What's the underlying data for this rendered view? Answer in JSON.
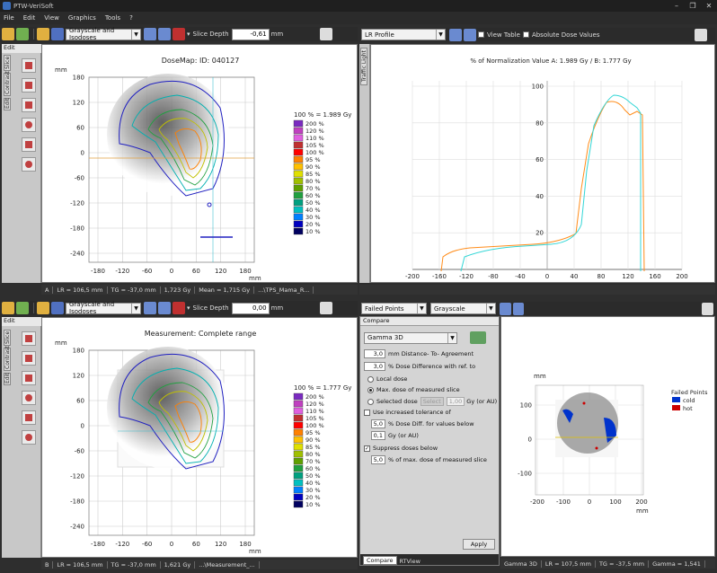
{
  "app": {
    "title": "PTW-VeriSoft",
    "menu": [
      "File",
      "Edit",
      "View",
      "Graphics",
      "Tools",
      "?"
    ],
    "window_buttons": [
      "–",
      "❐",
      "✕"
    ]
  },
  "top_left": {
    "combo": "Grayscale and Isodoses",
    "slice_label": "Slice Depth",
    "slice_value": "-0,61",
    "slice_unit": "mm",
    "edit_tab": "Edit",
    "vtabs": [
      "Slice",
      "Contrast",
      "Edit"
    ],
    "plot": {
      "title": "DoseMap: ID: 040127",
      "y_unit": "mm",
      "x_unit": "mm",
      "yticks": [
        "180",
        "120",
        "60",
        "0",
        "-60",
        "-120",
        "-180",
        "-240"
      ],
      "xticks": [
        "-180",
        "-120",
        "-60",
        "0",
        "60",
        "120",
        "180"
      ]
    },
    "legend": {
      "header": "100 % = 1.989 Gy",
      "items": [
        "200 %",
        "120 %",
        "110 %",
        "105 %",
        "100 %",
        "95 %",
        "90 %",
        "85 %",
        "80 %",
        "70 %",
        "60 %",
        "50 %",
        "40 %",
        "30 %",
        "20 %",
        "10 %"
      ]
    },
    "status": [
      "A",
      "LR = 106,5 mm",
      "TG = -37,0 mm",
      "1,723 Gy",
      "Mean = 1,715 Gy",
      "...\\TPS_Mama_R..."
    ]
  },
  "top_right": {
    "combo": "LR Profile",
    "view_table": "View Table",
    "absolute": "Absolute Dose Values",
    "vtab": "Traffic Light",
    "plot": {
      "title": "% of Normalization Value A: 1.989 Gy  / B: 1.777 Gy",
      "x_unit": "mm",
      "yticks": [
        "100",
        "80",
        "60",
        "40",
        "20"
      ],
      "xticks": [
        "-200",
        "-160",
        "-120",
        "-80",
        "-40",
        "0",
        "40",
        "80",
        "120",
        "160",
        "200"
      ]
    }
  },
  "bottom_left": {
    "combo": "Grayscale and Isodoses",
    "slice_label": "Slice Depth",
    "slice_value": "0,00",
    "slice_unit": "mm",
    "edit_tab": "Edit",
    "vtabs": [
      "Slice",
      "Contrast",
      "Edit"
    ],
    "plot": {
      "title": "Measurement: Complete range",
      "y_unit": "mm",
      "x_unit": "mm",
      "yticks": [
        "180",
        "120",
        "60",
        "0",
        "-60",
        "-120",
        "-180",
        "-240"
      ],
      "xticks": [
        "-180",
        "-120",
        "-60",
        "0",
        "60",
        "120",
        "180"
      ]
    },
    "legend": {
      "header": "100 % = 1.777 Gy",
      "items": [
        "200 %",
        "120 %",
        "110 %",
        "105 %",
        "100 %",
        "95 %",
        "90 %",
        "85 %",
        "80 %",
        "70 %",
        "60 %",
        "50 %",
        "40 %",
        "30 %",
        "20 %",
        "10 %"
      ]
    },
    "status": [
      "B",
      "LR = 106,5 mm",
      "TG = -37,0 mm",
      "1,621 Gy",
      "...\\Measurement_..."
    ]
  },
  "bottom_right": {
    "combo1": "Failed Points",
    "combo2": "Grayscale",
    "compare": {
      "header": "Compare",
      "method": "Gamma 3D",
      "dta_value": "3,0",
      "dta_label": "mm Distance- To- Agreement",
      "dd_value": "3,0",
      "dd_label": "% Dose Difference with ref. to",
      "local": "Local dose",
      "maxdose": "Max. dose of measured slice",
      "selected": "Selected dose",
      "select_btn": "Select",
      "selected_value": "1,00",
      "selected_unit": "Gy (or AU)",
      "use_tol": "Use increased tolerance of",
      "tol_value": "5,0",
      "tol_label": "% Dose Diff. for values below",
      "tol_gy": "0,1",
      "tol_gy_label": "Gy (or AU)",
      "suppress": "Suppress doses below",
      "sup_value": "5,0",
      "sup_label": "% of max. dose of measured slice",
      "apply": "Apply",
      "tabs": [
        "Compare",
        "RTView"
      ]
    },
    "plot": {
      "y_unit": "mm",
      "x_unit": "mm",
      "yticks": [
        "100",
        "0",
        "-100"
      ],
      "xticks": [
        "-200",
        "-100",
        "0",
        "100",
        "200"
      ],
      "legend_title": "Failed Points",
      "legend_items": [
        "cold",
        "hot"
      ]
    },
    "status": [
      "Gamma 3D",
      "LR = 107,5 mm",
      "TG = -37,5 mm",
      "Gamma = 1,541"
    ]
  },
  "colors": {
    "iso": [
      "#7a2ac0",
      "#c040c0",
      "#e060e0",
      "#c03030",
      "#ff0000",
      "#ff8000",
      "#ffc000",
      "#e0e000",
      "#a0c000",
      "#60a000",
      "#20a040",
      "#00a080",
      "#00c0c0",
      "#0080ff",
      "#0000c0",
      "#000060"
    ],
    "cold": "#0033cc",
    "hot": "#cc0000",
    "profile_a": "#ff8c1a",
    "profile_b": "#33d6d6"
  }
}
